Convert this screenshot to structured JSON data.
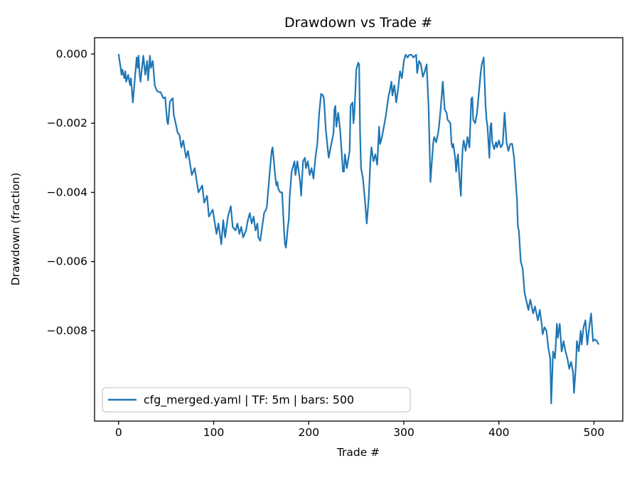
{
  "figure": {
    "title": "Drawdown vs Trade #",
    "xlabel": "Trade #",
    "ylabel": "Drawdown (fraction)"
  },
  "legend": {
    "label": "cfg_merged.yaml | TF: 5m | bars: 500",
    "line_color": "#1f77b4",
    "border_color": "#cccccc",
    "background": "#ffffff"
  },
  "chart_data": {
    "type": "line",
    "title": "Drawdown vs Trade #",
    "xlabel": "Trade #",
    "ylabel": "Drawdown (fraction)",
    "grid": false,
    "legend_position": "lower left",
    "xlim": [
      -25.3,
      530.3
    ],
    "ylim": [
      -0.010613,
      0.000472
    ],
    "x_ticks": {
      "values": [
        0,
        100,
        200,
        300,
        400,
        500
      ],
      "labels": [
        "0",
        "100",
        "200",
        "300",
        "400",
        "500"
      ]
    },
    "y_ticks": {
      "values": [
        0,
        -0.002,
        -0.004,
        -0.006,
        -0.008
      ],
      "labels": [
        "0.000",
        "−0.002",
        "−0.004",
        "−0.006",
        "−0.008"
      ]
    },
    "series": [
      {
        "name": "cfg_merged.yaml | TF: 5m | bars: 500",
        "color": "#1f77b4",
        "points": [
          [
            0,
            0
          ],
          [
            1,
            -0.0002
          ],
          [
            2,
            -0.00036
          ],
          [
            3,
            -0.0006
          ],
          [
            4,
            -0.00045
          ],
          [
            6,
            -0.0007
          ],
          [
            7,
            -0.0005
          ],
          [
            8,
            -0.0008
          ],
          [
            10,
            -0.0006
          ],
          [
            12,
            -0.0009
          ],
          [
            13,
            -0.0007
          ],
          [
            15,
            -0.0014
          ],
          [
            17,
            -0.00074
          ],
          [
            19,
            -0.0001
          ],
          [
            20,
            -0.0004
          ],
          [
            21,
            -5e-05
          ],
          [
            22,
            -0.00055
          ],
          [
            23,
            -0.0008
          ],
          [
            25,
            -0.0003
          ],
          [
            26,
            -5e-05
          ],
          [
            28,
            -0.0006
          ],
          [
            30,
            -0.0002
          ],
          [
            31,
            -0.00076
          ],
          [
            33,
            -5e-05
          ],
          [
            34,
            -0.0004
          ],
          [
            36,
            -0.0002
          ],
          [
            37,
            -0.00055
          ],
          [
            38,
            -0.0009
          ],
          [
            40,
            -0.00105
          ],
          [
            42,
            -0.0011
          ],
          [
            44,
            -0.0011
          ],
          [
            45,
            -0.00115
          ],
          [
            47,
            -0.00128
          ],
          [
            49,
            -0.00125
          ],
          [
            51,
            -0.00193
          ],
          [
            52,
            -0.00203
          ],
          [
            54,
            -0.00138
          ],
          [
            56,
            -0.0013
          ],
          [
            57,
            -0.00128
          ],
          [
            58,
            -0.00176
          ],
          [
            60,
            -0.002
          ],
          [
            62,
            -0.00227
          ],
          [
            64,
            -0.00234
          ],
          [
            66,
            -0.0027
          ],
          [
            68,
            -0.0025
          ],
          [
            71,
            -0.003
          ],
          [
            73,
            -0.0028
          ],
          [
            77,
            -0.0035
          ],
          [
            80,
            -0.0033
          ],
          [
            84,
            -0.004
          ],
          [
            88,
            -0.0038
          ],
          [
            90,
            -0.0043
          ],
          [
            93,
            -0.0041
          ],
          [
            95,
            -0.0047
          ],
          [
            99,
            -0.0045
          ],
          [
            103,
            -0.0052
          ],
          [
            105,
            -0.0049
          ],
          [
            108,
            -0.0055
          ],
          [
            110,
            -0.0048
          ],
          [
            112,
            -0.0053
          ],
          [
            115,
            -0.0047
          ],
          [
            118,
            -0.0044
          ],
          [
            120,
            -0.005
          ],
          [
            123,
            -0.0051
          ],
          [
            125,
            -0.0049
          ],
          [
            127,
            -0.0052
          ],
          [
            129,
            -0.005
          ],
          [
            131,
            -0.0053
          ],
          [
            134,
            -0.0051
          ],
          [
            136,
            -0.0048
          ],
          [
            138,
            -0.0046
          ],
          [
            140,
            -0.0049
          ],
          [
            142,
            -0.0047
          ],
          [
            144,
            -0.0051
          ],
          [
            146,
            -0.0049
          ],
          [
            147,
            -0.0053
          ],
          [
            149,
            -0.0054
          ],
          [
            151,
            -0.005
          ],
          [
            153,
            -0.0046
          ],
          [
            155,
            -0.0045
          ],
          [
            156,
            -0.0044
          ],
          [
            159,
            -0.0034
          ],
          [
            161,
            -0.0028
          ],
          [
            162,
            -0.0027
          ],
          [
            164,
            -0.0033
          ],
          [
            165,
            -0.0036
          ],
          [
            166,
            -0.0038
          ],
          [
            167,
            -0.0037
          ],
          [
            168,
            -0.0039
          ],
          [
            170,
            -0.004
          ],
          [
            172,
            -0.004
          ],
          [
            174,
            -0.0051
          ],
          [
            175,
            -0.0055
          ],
          [
            176,
            -0.0056
          ],
          [
            178,
            -0.005
          ],
          [
            179,
            -0.0048
          ],
          [
            180,
            -0.0041
          ],
          [
            182,
            -0.0034
          ],
          [
            185,
            -0.0031
          ],
          [
            186,
            -0.0035
          ],
          [
            188,
            -0.0031
          ],
          [
            191,
            -0.0037
          ],
          [
            192,
            -0.0041
          ],
          [
            194,
            -0.0031
          ],
          [
            196,
            -0.003
          ],
          [
            197,
            -0.0033
          ],
          [
            199,
            -0.0031
          ],
          [
            201,
            -0.0035
          ],
          [
            203,
            -0.0033
          ],
          [
            205,
            -0.0036
          ],
          [
            207,
            -0.003
          ],
          [
            209,
            -0.0026
          ],
          [
            211,
            -0.0017
          ],
          [
            213,
            -0.00115
          ],
          [
            215,
            -0.0012
          ],
          [
            216,
            -0.0013
          ],
          [
            218,
            -0.0022
          ],
          [
            220,
            -0.00275
          ],
          [
            221,
            -0.003
          ],
          [
            223,
            -0.0027
          ],
          [
            226,
            -0.0023
          ],
          [
            227,
            -0.0016
          ],
          [
            228,
            -0.0015
          ],
          [
            229,
            -0.0021
          ],
          [
            231,
            -0.0017
          ],
          [
            233,
            -0.0022
          ],
          [
            235,
            -0.003
          ],
          [
            236,
            -0.0034
          ],
          [
            237,
            -0.0034
          ],
          [
            238,
            -0.0029
          ],
          [
            240,
            -0.0033
          ],
          [
            243,
            -0.0028
          ],
          [
            244,
            -0.0015
          ],
          [
            246,
            -0.0014
          ],
          [
            247,
            -0.002
          ],
          [
            248,
            -0.0017
          ],
          [
            250,
            -0.00045
          ],
          [
            252,
            -0.00025
          ],
          [
            253,
            -0.0003
          ],
          [
            254,
            -0.0023
          ],
          [
            255,
            -0.0033
          ],
          [
            257,
            -0.0036
          ],
          [
            259,
            -0.0042
          ],
          [
            261,
            -0.0049
          ],
          [
            263,
            -0.0042
          ],
          [
            265,
            -0.003
          ],
          [
            266,
            -0.0027
          ],
          [
            268,
            -0.0031
          ],
          [
            270,
            -0.0029
          ],
          [
            272,
            -0.0032
          ],
          [
            274,
            -0.0021
          ],
          [
            275,
            -0.0026
          ],
          [
            277,
            -0.0024
          ],
          [
            279,
            -0.0021
          ],
          [
            281,
            -0.0018
          ],
          [
            284,
            -0.0012
          ],
          [
            285,
            -0.0011
          ],
          [
            287,
            -0.0008
          ],
          [
            288,
            -0.0012
          ],
          [
            290,
            -0.0009
          ],
          [
            292,
            -0.0014
          ],
          [
            294,
            -0.001
          ],
          [
            296,
            -0.0005
          ],
          [
            298,
            -0.0007
          ],
          [
            300,
            -0.0002
          ],
          [
            302,
            -2e-05
          ],
          [
            304,
            -0.0001
          ],
          [
            306,
            -2e-05
          ],
          [
            308,
            -2e-05
          ],
          [
            310,
            -0.0001
          ],
          [
            313,
            -2e-05
          ],
          [
            314,
            -0.00055
          ],
          [
            316,
            -0.0002
          ],
          [
            318,
            -0.0003
          ],
          [
            320,
            -0.00066
          ],
          [
            322,
            -0.0005
          ],
          [
            324,
            -0.0003
          ],
          [
            326,
            -0.0015
          ],
          [
            328,
            -0.0037
          ],
          [
            329,
            -0.0033
          ],
          [
            331,
            -0.00255
          ],
          [
            332,
            -0.0024
          ],
          [
            334,
            -0.00255
          ],
          [
            336,
            -0.0023
          ],
          [
            337,
            -0.0021
          ],
          [
            339,
            -0.0015
          ],
          [
            341,
            -0.0008
          ],
          [
            343,
            -0.0016
          ],
          [
            345,
            -0.0017
          ],
          [
            346,
            -0.0019
          ],
          [
            349,
            -0.002
          ],
          [
            350,
            -0.00255
          ],
          [
            351,
            -0.0027
          ],
          [
            352,
            -0.0026
          ],
          [
            354,
            -0.003
          ],
          [
            355,
            -0.0034
          ],
          [
            356,
            -0.0031
          ],
          [
            357,
            -0.0029
          ],
          [
            358,
            -0.0034
          ],
          [
            360,
            -0.0041
          ],
          [
            361,
            -0.0032
          ],
          [
            362,
            -0.0027
          ],
          [
            363,
            -0.0025
          ],
          [
            365,
            -0.0028
          ],
          [
            367,
            -0.0024
          ],
          [
            369,
            -0.0027
          ],
          [
            371,
            -0.0013
          ],
          [
            372,
            -0.00125
          ],
          [
            373,
            -0.0019
          ],
          [
            375,
            -0.002
          ],
          [
            377,
            -0.0017
          ],
          [
            378,
            -0.0014
          ],
          [
            380,
            -0.0008
          ],
          [
            381,
            -0.0005
          ],
          [
            382,
            -0.0003
          ],
          [
            384,
            -0.0001
          ],
          [
            385,
            -0.0008
          ],
          [
            386,
            -0.0015
          ],
          [
            387,
            -0.0019
          ],
          [
            388,
            -0.0021
          ],
          [
            390,
            -0.003
          ],
          [
            391,
            -0.0021
          ],
          [
            392,
            -0.002
          ],
          [
            393,
            -0.00255
          ],
          [
            395,
            -0.00275
          ],
          [
            397,
            -0.00255
          ],
          [
            398,
            -0.0027
          ],
          [
            400,
            -0.0025
          ],
          [
            402,
            -0.0027
          ],
          [
            404,
            -0.0026
          ],
          [
            406,
            -0.0017
          ],
          [
            408,
            -0.00255
          ],
          [
            410,
            -0.0028
          ],
          [
            412,
            -0.0026
          ],
          [
            414,
            -0.0026
          ],
          [
            416,
            -0.003
          ],
          [
            417,
            -0.0034
          ],
          [
            418,
            -0.0038
          ],
          [
            419,
            -0.0042
          ],
          [
            420,
            -0.005
          ],
          [
            421,
            -0.0051
          ],
          [
            423,
            -0.006
          ],
          [
            425,
            -0.0062
          ],
          [
            427,
            -0.0069
          ],
          [
            429,
            -0.00715
          ],
          [
            431,
            -0.0074
          ],
          [
            433,
            -0.0071
          ],
          [
            436,
            -0.0075
          ],
          [
            438,
            -0.0073
          ],
          [
            441,
            -0.0077
          ],
          [
            443,
            -0.0074
          ],
          [
            445,
            -0.0078
          ],
          [
            446,
            -0.0081
          ],
          [
            448,
            -0.0079
          ],
          [
            450,
            -0.008
          ],
          [
            452,
            -0.0085
          ],
          [
            454,
            -0.0088
          ],
          [
            455,
            -0.0101
          ],
          [
            457,
            -0.0086
          ],
          [
            459,
            -0.0088
          ],
          [
            461,
            -0.0078
          ],
          [
            462,
            -0.0082
          ],
          [
            464,
            -0.0078
          ],
          [
            466,
            -0.0086
          ],
          [
            468,
            -0.0083
          ],
          [
            470,
            -0.0086
          ],
          [
            472,
            -0.0088
          ],
          [
            474,
            -0.0091
          ],
          [
            476,
            -0.0089
          ],
          [
            478,
            -0.0092
          ],
          [
            479,
            -0.0098
          ],
          [
            481,
            -0.009
          ],
          [
            482,
            -0.0083
          ],
          [
            484,
            -0.0086
          ],
          [
            486,
            -0.008
          ],
          [
            487,
            -0.0084
          ],
          [
            489,
            -0.0079
          ],
          [
            491,
            -0.0077
          ],
          [
            493,
            -0.0084
          ],
          [
            495,
            -0.0079
          ],
          [
            497,
            -0.0075
          ],
          [
            499,
            -0.0083
          ],
          [
            501,
            -0.00825
          ],
          [
            503,
            -0.0083
          ],
          [
            505,
            -0.0084
          ]
        ]
      }
    ]
  }
}
